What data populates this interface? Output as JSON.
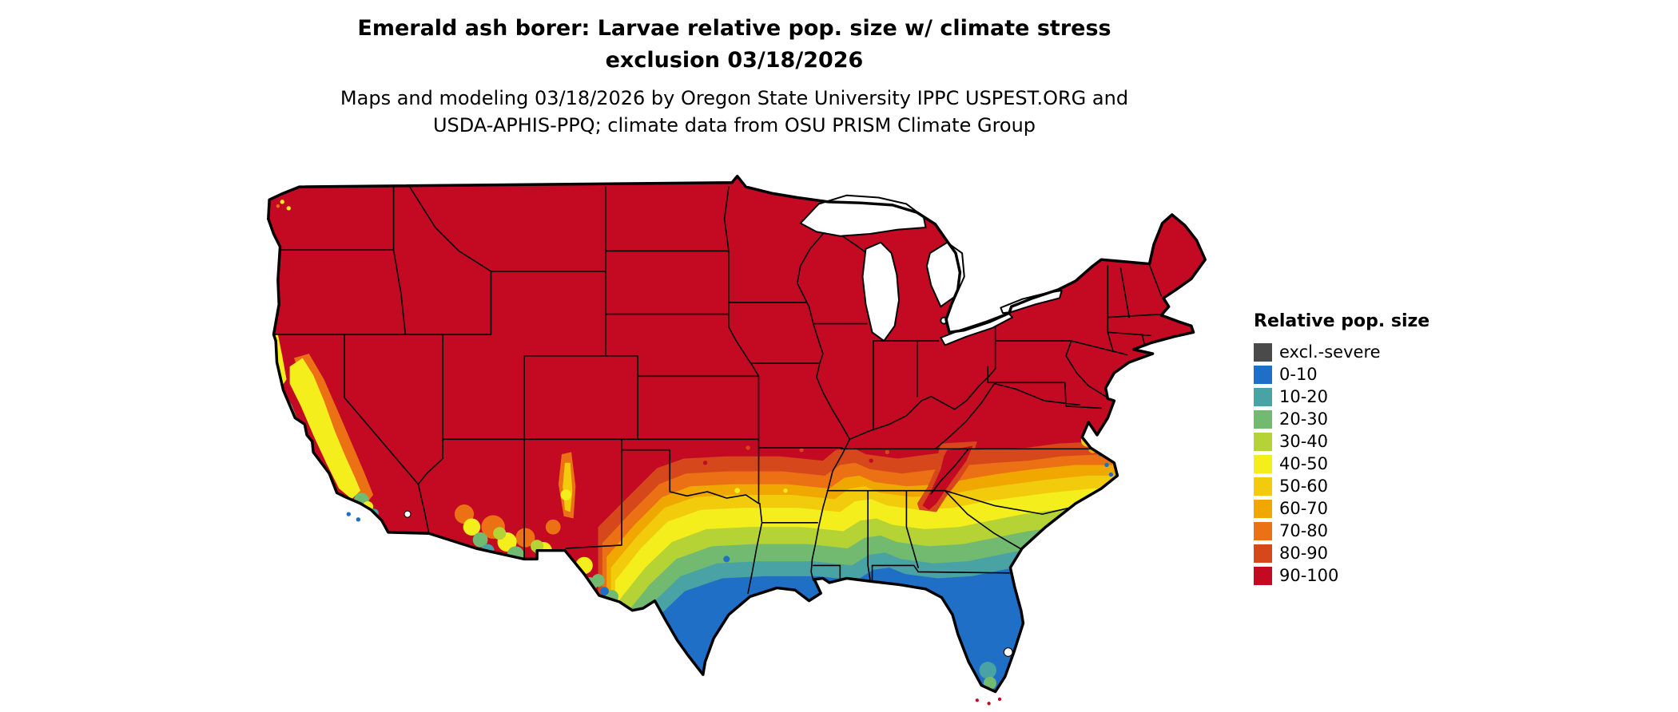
{
  "title": {
    "line1": "Emerald ash borer: Larvae relative pop. size w/ climate stress",
    "line2": "exclusion 03/18/2026"
  },
  "subtitle": {
    "line1": "Maps and modeling 03/18/2026 by Oregon State University IPPC USPEST.ORG and",
    "line2": "USDA-APHIS-PPQ; climate data from OSU PRISM Climate Group"
  },
  "legend": {
    "title": "Relative pop. size",
    "items": [
      {
        "label": "excl.-severe",
        "color": "#4a4a4a"
      },
      {
        "label": "0-10",
        "color": "#1e6fc5"
      },
      {
        "label": "10-20",
        "color": "#49a3a4"
      },
      {
        "label": "20-30",
        "color": "#72ba70"
      },
      {
        "label": "30-40",
        "color": "#b5d334"
      },
      {
        "label": "40-50",
        "color": "#f4ee1c"
      },
      {
        "label": "50-60",
        "color": "#f2cc0c"
      },
      {
        "label": "60-70",
        "color": "#f0a800"
      },
      {
        "label": "70-80",
        "color": "#ec7014"
      },
      {
        "label": "80-90",
        "color": "#d6481c"
      },
      {
        "label": "90-100",
        "color": "#c40a22"
      }
    ]
  },
  "map": {
    "background_color": "#ffffff",
    "border_color": "#000000"
  }
}
